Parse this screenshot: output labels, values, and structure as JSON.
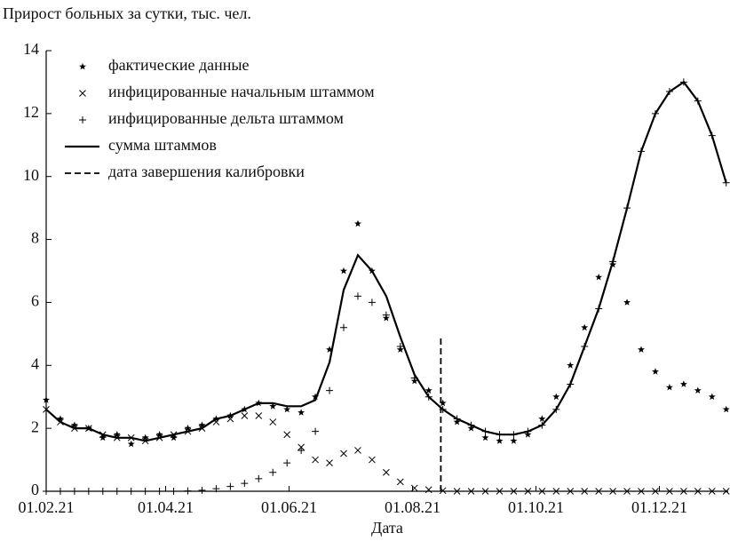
{
  "chart_data": {
    "type": "scatter-line",
    "title": "Прирост больных за сутки, тыс. чел.",
    "x_label": "Дата",
    "x": [
      "01.02.21",
      "08.02.21",
      "15.02.21",
      "22.02.21",
      "01.03.21",
      "08.03.21",
      "15.03.21",
      "22.03.21",
      "29.03.21",
      "05.04.21",
      "12.04.21",
      "19.04.21",
      "26.04.21",
      "03.05.21",
      "10.05.21",
      "17.05.21",
      "24.05.21",
      "31.05.21",
      "07.06.21",
      "14.06.21",
      "21.06.21",
      "28.06.21",
      "05.07.21",
      "12.07.21",
      "19.07.21",
      "26.07.21",
      "02.08.21",
      "09.08.21",
      "16.08.21",
      "23.08.21",
      "30.08.21",
      "06.09.21",
      "13.09.21",
      "20.09.21",
      "27.09.21",
      "04.10.21",
      "11.10.21",
      "18.10.21",
      "25.10.21",
      "01.11.21",
      "08.11.21",
      "15.11.21",
      "22.11.21",
      "29.11.21",
      "06.12.21",
      "13.12.21",
      "20.12.21",
      "27.12.21",
      "03.01.22"
    ],
    "series": [
      {
        "name": "фактические данные",
        "marker": "star",
        "color": "#000000",
        "values": [
          2.9,
          2.3,
          2.1,
          2.0,
          1.7,
          1.8,
          1.5,
          1.7,
          1.8,
          1.7,
          2.0,
          2.1,
          2.3,
          2.4,
          2.6,
          2.8,
          2.7,
          2.6,
          2.5,
          3.0,
          4.5,
          7.0,
          8.5,
          7.0,
          5.5,
          4.5,
          3.5,
          3.2,
          2.8,
          2.2,
          2.0,
          1.7,
          1.6,
          1.6,
          1.8,
          2.3,
          3.0,
          4.0,
          5.2,
          6.8,
          7.2,
          6.0,
          4.5,
          3.8,
          3.3,
          3.4,
          3.2,
          3.0,
          2.6
        ]
      },
      {
        "name": "инфицированные начальным штаммом",
        "marker": "x",
        "color": "#000000",
        "values": [
          2.6,
          2.2,
          2.0,
          2.0,
          1.8,
          1.7,
          1.7,
          1.6,
          1.7,
          1.8,
          1.9,
          2.0,
          2.2,
          2.3,
          2.4,
          2.4,
          2.2,
          1.8,
          1.4,
          1.0,
          0.9,
          1.2,
          1.3,
          1.0,
          0.6,
          0.3,
          0.1,
          0.05,
          0.02,
          0,
          0,
          0,
          0,
          0,
          0,
          0,
          0,
          0,
          0,
          0,
          0,
          0,
          0,
          0,
          0,
          0,
          0,
          0,
          0
        ]
      },
      {
        "name": "инфицированные дельта штаммом",
        "marker": "plus",
        "color": "#000000",
        "values": [
          0,
          0,
          0,
          0,
          0,
          0,
          0,
          0,
          0,
          0,
          0.01,
          0.03,
          0.08,
          0.15,
          0.25,
          0.4,
          0.6,
          0.9,
          1.3,
          1.9,
          3.2,
          5.2,
          6.2,
          6.0,
          5.6,
          4.6,
          3.6,
          3.0,
          2.6,
          2.3,
          2.1,
          1.9,
          1.8,
          1.8,
          1.9,
          2.1,
          2.6,
          3.4,
          4.6,
          5.8,
          7.3,
          9.0,
          10.8,
          12.0,
          12.7,
          13.0,
          12.4,
          11.3,
          9.8
        ]
      },
      {
        "name": "сумма штаммов",
        "marker": "line",
        "color": "#000000",
        "values": [
          2.6,
          2.2,
          2.0,
          2.0,
          1.8,
          1.7,
          1.7,
          1.6,
          1.7,
          1.8,
          1.9,
          2.0,
          2.3,
          2.4,
          2.6,
          2.8,
          2.8,
          2.7,
          2.7,
          2.9,
          4.1,
          6.4,
          7.5,
          7.0,
          6.2,
          4.9,
          3.7,
          3.0,
          2.6,
          2.3,
          2.1,
          1.9,
          1.8,
          1.8,
          1.9,
          2.1,
          2.6,
          3.4,
          4.6,
          5.8,
          7.3,
          9.0,
          10.8,
          12.0,
          12.7,
          13.0,
          12.4,
          11.3,
          9.8
        ]
      },
      {
        "name": "дата завершения калибровки",
        "marker": "dashed",
        "color": "#000000",
        "x": [
          "15.08.21",
          "15.08.21"
        ],
        "values": [
          0,
          4.9
        ]
      }
    ],
    "xlim": [
      "01.02.21",
      "04.01.22"
    ],
    "xticks": [
      "01.02.21",
      "01.04.21",
      "01.06.21",
      "01.08.21",
      "01.10.21",
      "01.12.21"
    ],
    "ylim": [
      0,
      14
    ],
    "yticks": [
      0,
      2,
      4,
      6,
      8,
      10,
      12,
      14
    ]
  }
}
